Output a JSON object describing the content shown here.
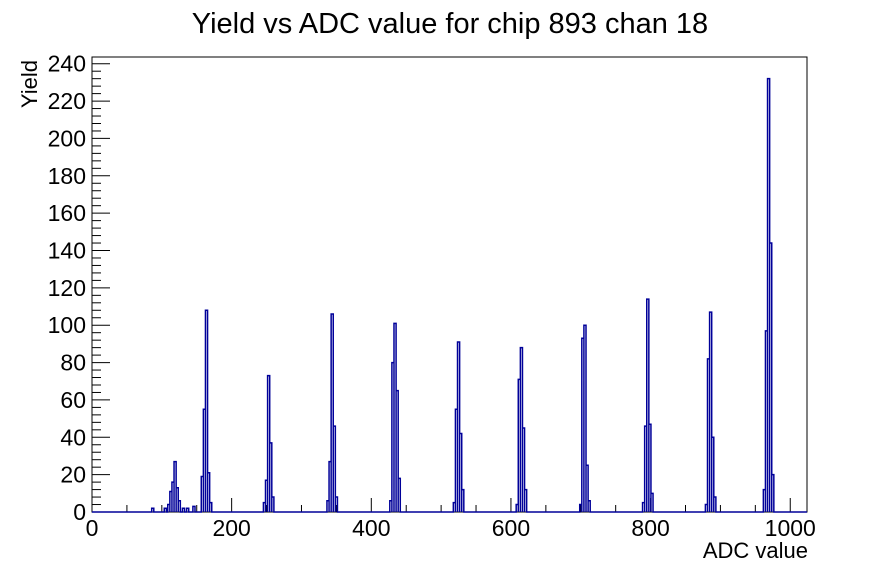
{
  "chart_data": {
    "type": "bar",
    "title": "Yield vs ADC value for chip 893 chan 18",
    "xlabel": "ADC value",
    "ylabel": "Yield",
    "xlim": [
      0,
      1024
    ],
    "ylim": [
      0,
      243.6
    ],
    "grid": false,
    "legend": "none",
    "line_color": "#000099",
    "frame_color": "#000000",
    "bin_width_adc": 3,
    "x_ticks": [
      {
        "value": 0,
        "label": "0"
      },
      {
        "value": 200,
        "label": "200"
      },
      {
        "value": 400,
        "label": "400"
      },
      {
        "value": 600,
        "label": "600"
      },
      {
        "value": 800,
        "label": "800"
      },
      {
        "value": 1000,
        "label": "1000"
      }
    ],
    "y_ticks": [
      {
        "value": 0,
        "label": "0"
      },
      {
        "value": 20,
        "label": "20"
      },
      {
        "value": 40,
        "label": "40"
      },
      {
        "value": 60,
        "label": "60"
      },
      {
        "value": 80,
        "label": "80"
      },
      {
        "value": 100,
        "label": "100"
      },
      {
        "value": 120,
        "label": "120"
      },
      {
        "value": 140,
        "label": "140"
      },
      {
        "value": 160,
        "label": "160"
      },
      {
        "value": 180,
        "label": "180"
      },
      {
        "value": 200,
        "label": "200"
      },
      {
        "value": 220,
        "label": "220"
      },
      {
        "value": 240,
        "label": "240"
      }
    ],
    "x_minor": {
      "step": 50,
      "min": 0,
      "max": 1000
    },
    "y_minor": {
      "step": 4,
      "min": 0,
      "max": 240
    },
    "peaks_summary": {
      "centers_adc": [
        119,
        164,
        253,
        344,
        434,
        525,
        615,
        706,
        796,
        886,
        969
      ],
      "peak_heights": [
        27,
        108,
        73,
        106,
        101,
        91,
        88,
        100,
        114,
        107,
        232
      ]
    },
    "bins": [
      [
        87,
        2
      ],
      [
        105,
        2
      ],
      [
        110,
        4
      ],
      [
        113,
        11
      ],
      [
        116,
        16
      ],
      [
        119,
        27
      ],
      [
        122,
        13
      ],
      [
        125,
        6
      ],
      [
        131,
        2
      ],
      [
        137,
        2
      ],
      [
        146,
        3
      ],
      [
        158,
        19
      ],
      [
        161,
        55
      ],
      [
        164,
        108
      ],
      [
        167,
        21
      ],
      [
        170,
        5
      ],
      [
        247,
        5
      ],
      [
        250,
        17
      ],
      [
        253,
        73
      ],
      [
        256,
        37
      ],
      [
        259,
        8
      ],
      [
        338,
        6
      ],
      [
        341,
        27
      ],
      [
        344,
        106
      ],
      [
        347,
        46
      ],
      [
        350,
        8
      ],
      [
        428,
        6
      ],
      [
        431,
        80
      ],
      [
        434,
        101
      ],
      [
        437,
        65
      ],
      [
        440,
        18
      ],
      [
        519,
        5
      ],
      [
        522,
        55
      ],
      [
        525,
        91
      ],
      [
        528,
        42
      ],
      [
        531,
        12
      ],
      [
        609,
        4
      ],
      [
        612,
        71
      ],
      [
        615,
        88
      ],
      [
        618,
        45
      ],
      [
        621,
        12
      ],
      [
        700,
        4
      ],
      [
        703,
        93
      ],
      [
        706,
        100
      ],
      [
        709,
        25
      ],
      [
        712,
        6
      ],
      [
        790,
        5
      ],
      [
        793,
        46
      ],
      [
        796,
        114
      ],
      [
        799,
        47
      ],
      [
        802,
        10
      ],
      [
        880,
        4
      ],
      [
        883,
        82
      ],
      [
        886,
        107
      ],
      [
        889,
        40
      ],
      [
        892,
        8
      ],
      [
        963,
        12
      ],
      [
        966,
        97
      ],
      [
        969,
        232
      ],
      [
        972,
        144
      ],
      [
        975,
        20
      ]
    ]
  }
}
